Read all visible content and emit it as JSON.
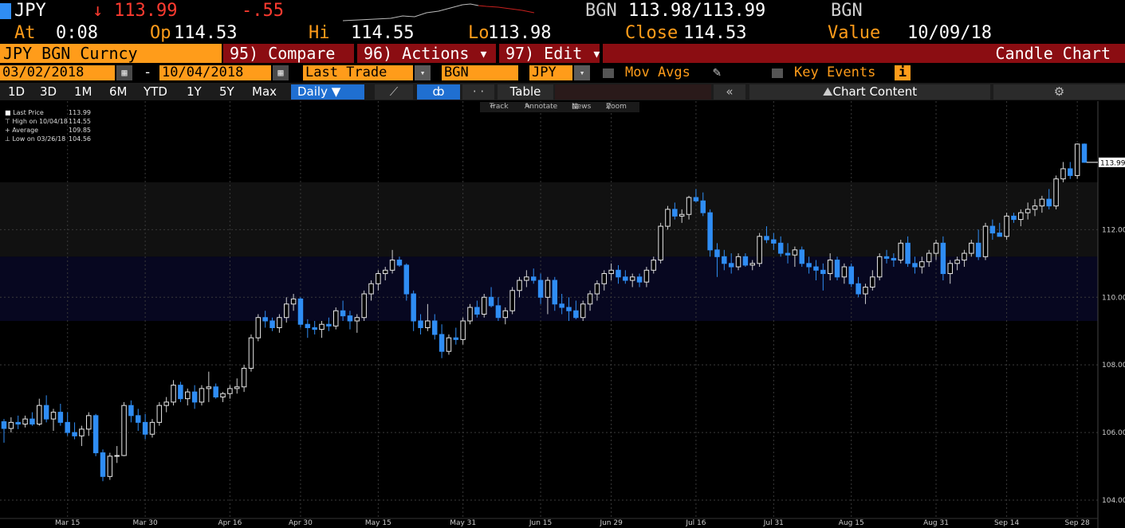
{
  "header": {
    "ticker": "JPY",
    "arrow": "↓",
    "last": "113.99",
    "change": "-.55",
    "bid_src": "BGN",
    "bid_ask": "113.98/113.99",
    "ask_src": "BGN",
    "at_label": "At",
    "at_value": "0:08",
    "op_label": "Op",
    "op_value": "114.53",
    "hi_label": "Hi",
    "hi_value": "114.55",
    "lo_label": "Lo",
    "lo_value": "113.98",
    "close_label": "Close",
    "close_value": "114.53",
    "value_label": "Value",
    "value_date": "10/09/18"
  },
  "menubar": {
    "security": "JPY BGN Curncy",
    "compare": "95) Compare",
    "actions": "96) Actions ▾",
    "edit": "97) Edit ▾",
    "chart_type": "Candle Chart"
  },
  "controls": {
    "start_date": "03/02/2018",
    "dash": "-",
    "end_date": "10/04/2018",
    "field": "Last Trade",
    "source": "BGN",
    "currency": "JPY",
    "mov_avgs": "Mov Avgs",
    "key_events": "Key Events",
    "info_glyph": "i",
    "cal_glyph": "▦",
    "drop_glyph": "▾"
  },
  "toolbar": {
    "periods": [
      "1D",
      "3D",
      "1M",
      "6M",
      "YTD",
      "1Y",
      "5Y",
      "Max"
    ],
    "frequency": "Daily ▼",
    "table": "Table",
    "collapse": "«",
    "chart_content": "Chart Content",
    "settings_glyph": "⚙",
    "line_glyph": "⟋",
    "candle_glyph": "ȸ",
    "dots_glyph": "· ·"
  },
  "mini_toolbar": {
    "track": "Track",
    "annotate": "Annotate",
    "news": "News",
    "zoom": "Zoom"
  },
  "legend": {
    "last_price_label": "Last Price",
    "last_price": "113.99",
    "high_label": "High on 10/04/18",
    "high": "114.55",
    "average_label": "Average",
    "average": "109.85",
    "low_label": "Low on 03/26/18",
    "low": "104.56"
  },
  "colors": {
    "up": "#ffffff",
    "down": "#2f8df4",
    "accent": "#ff9c1a",
    "neg": "#ff3b30",
    "band": "#0a0a22"
  },
  "chart_data": {
    "type": "candlestick",
    "ylim": [
      103.6,
      115.8
    ],
    "y_ticks": [
      104,
      106,
      108,
      110,
      112
    ],
    "last_label": "113.99",
    "x_ticks": [
      "Mar 15",
      "Mar 30",
      "Apr 16",
      "Apr 30",
      "May 15",
      "May 31",
      "Jun 15",
      "Jun 29",
      "Jul 16",
      "Jul 31",
      "Aug 15",
      "Aug 31",
      "Sep 14",
      "Sep 28"
    ],
    "x_tick_index": [
      9,
      20,
      32,
      42,
      53,
      65,
      76,
      86,
      98,
      109,
      120,
      132,
      142,
      152
    ],
    "candles": [
      [
        106.32,
        106.4,
        105.7,
        106.12
      ],
      [
        106.12,
        106.45,
        106.0,
        106.3
      ],
      [
        106.3,
        106.5,
        106.1,
        106.25
      ],
      [
        106.25,
        106.5,
        106.15,
        106.4
      ],
      [
        106.4,
        106.6,
        106.2,
        106.25
      ],
      [
        106.25,
        107.0,
        106.2,
        106.8
      ],
      [
        106.8,
        107.1,
        106.3,
        106.4
      ],
      [
        106.4,
        106.7,
        106.05,
        106.6
      ],
      [
        106.6,
        106.85,
        106.2,
        106.3
      ],
      [
        106.3,
        106.6,
        105.9,
        106.0
      ],
      [
        106.0,
        106.3,
        105.8,
        105.9
      ],
      [
        105.9,
        106.2,
        105.6,
        106.1
      ],
      [
        106.1,
        106.6,
        105.9,
        106.5
      ],
      [
        106.5,
        106.55,
        105.3,
        105.4
      ],
      [
        105.4,
        105.5,
        104.56,
        104.7
      ],
      [
        104.7,
        105.4,
        104.6,
        105.3
      ],
      [
        105.3,
        105.6,
        105.1,
        105.32
      ],
      [
        105.32,
        106.9,
        105.3,
        106.8
      ],
      [
        106.8,
        106.95,
        106.3,
        106.5
      ],
      [
        106.5,
        106.7,
        106.05,
        106.3
      ],
      [
        106.3,
        106.55,
        105.8,
        105.95
      ],
      [
        105.95,
        106.4,
        105.85,
        106.3
      ],
      [
        106.3,
        106.9,
        106.2,
        106.8
      ],
      [
        106.8,
        107.05,
        106.6,
        106.9
      ],
      [
        106.9,
        107.55,
        106.8,
        107.4
      ],
      [
        107.4,
        107.5,
        106.9,
        107.0
      ],
      [
        107.0,
        107.3,
        106.8,
        107.2
      ],
      [
        107.2,
        107.4,
        106.7,
        106.9
      ],
      [
        106.9,
        107.4,
        106.8,
        107.3
      ],
      [
        107.3,
        107.8,
        106.9,
        107.35
      ],
      [
        107.35,
        107.45,
        107.0,
        107.05
      ],
      [
        107.05,
        107.2,
        106.9,
        107.15
      ],
      [
        107.15,
        107.4,
        107.0,
        107.3
      ],
      [
        107.3,
        107.6,
        107.15,
        107.35
      ],
      [
        107.35,
        108.0,
        107.2,
        107.9
      ],
      [
        107.9,
        108.9,
        107.8,
        108.8
      ],
      [
        108.8,
        109.5,
        108.7,
        109.4
      ],
      [
        109.4,
        109.6,
        109.1,
        109.3
      ],
      [
        109.3,
        109.4,
        109.0,
        109.1
      ],
      [
        109.1,
        109.5,
        108.95,
        109.4
      ],
      [
        109.4,
        110.0,
        109.25,
        109.8
      ],
      [
        109.8,
        110.1,
        109.6,
        109.95
      ],
      [
        109.95,
        110.0,
        109.1,
        109.2
      ],
      [
        109.2,
        109.35,
        108.8,
        109.1
      ],
      [
        109.1,
        109.3,
        108.9,
        109.05
      ],
      [
        109.05,
        109.3,
        108.8,
        109.2
      ],
      [
        109.2,
        109.4,
        109.0,
        109.15
      ],
      [
        109.15,
        109.7,
        109.05,
        109.6
      ],
      [
        109.6,
        109.9,
        109.3,
        109.45
      ],
      [
        109.45,
        109.6,
        109.05,
        109.3
      ],
      [
        109.3,
        109.5,
        108.95,
        109.4
      ],
      [
        109.4,
        110.2,
        109.3,
        110.1
      ],
      [
        110.1,
        110.5,
        109.9,
        110.4
      ],
      [
        110.4,
        110.8,
        110.2,
        110.7
      ],
      [
        110.7,
        110.9,
        110.5,
        110.8
      ],
      [
        110.8,
        111.4,
        110.7,
        111.1
      ],
      [
        111.1,
        111.2,
        110.9,
        110.95
      ],
      [
        110.95,
        111.0,
        109.9,
        110.1
      ],
      [
        110.1,
        110.2,
        109.0,
        109.3
      ],
      [
        109.3,
        109.5,
        108.9,
        109.1
      ],
      [
        109.1,
        109.8,
        109.0,
        109.3
      ],
      [
        109.3,
        109.5,
        108.75,
        108.9
      ],
      [
        108.9,
        109.2,
        108.2,
        108.4
      ],
      [
        108.4,
        108.9,
        108.3,
        108.8
      ],
      [
        108.8,
        109.1,
        108.6,
        108.75
      ],
      [
        108.75,
        109.4,
        108.6,
        109.3
      ],
      [
        109.3,
        109.8,
        109.2,
        109.7
      ],
      [
        109.7,
        109.9,
        109.4,
        109.5
      ],
      [
        109.5,
        110.1,
        109.4,
        110.0
      ],
      [
        110.0,
        110.3,
        109.7,
        109.75
      ],
      [
        109.75,
        110.0,
        109.3,
        109.4
      ],
      [
        109.4,
        109.7,
        109.2,
        109.6
      ],
      [
        109.6,
        110.3,
        109.5,
        110.2
      ],
      [
        110.2,
        110.6,
        110.0,
        110.5
      ],
      [
        110.5,
        110.8,
        110.3,
        110.6
      ],
      [
        110.6,
        110.85,
        110.4,
        110.5
      ],
      [
        110.5,
        110.7,
        109.8,
        110.0
      ],
      [
        110.0,
        110.6,
        109.5,
        110.5
      ],
      [
        110.5,
        110.6,
        109.6,
        109.8
      ],
      [
        109.8,
        110.1,
        109.5,
        109.7
      ],
      [
        109.7,
        110.0,
        109.3,
        109.6
      ],
      [
        109.6,
        109.9,
        109.35,
        109.4
      ],
      [
        109.4,
        109.9,
        109.3,
        109.8
      ],
      [
        109.8,
        110.2,
        109.6,
        110.1
      ],
      [
        110.1,
        110.5,
        109.9,
        110.4
      ],
      [
        110.4,
        110.8,
        110.2,
        110.7
      ],
      [
        110.7,
        111.0,
        110.5,
        110.8
      ],
      [
        110.8,
        110.95,
        110.4,
        110.6
      ],
      [
        110.6,
        110.8,
        110.4,
        110.5
      ],
      [
        110.5,
        110.7,
        110.3,
        110.6
      ],
      [
        110.6,
        110.7,
        110.3,
        110.45
      ],
      [
        110.45,
        110.9,
        110.3,
        110.8
      ],
      [
        110.8,
        111.2,
        110.7,
        111.1
      ],
      [
        111.1,
        112.2,
        111.0,
        112.1
      ],
      [
        112.1,
        112.7,
        112.0,
        112.6
      ],
      [
        112.6,
        112.8,
        112.3,
        112.4
      ],
      [
        112.4,
        112.6,
        112.2,
        112.45
      ],
      [
        112.45,
        113.0,
        112.3,
        112.95
      ],
      [
        112.95,
        113.2,
        112.8,
        112.85
      ],
      [
        112.85,
        113.1,
        112.4,
        112.5
      ],
      [
        112.5,
        112.6,
        111.2,
        111.4
      ],
      [
        111.4,
        111.6,
        110.6,
        111.2
      ],
      [
        111.2,
        111.4,
        110.8,
        111.0
      ],
      [
        111.0,
        111.3,
        110.7,
        110.9
      ],
      [
        110.9,
        111.3,
        110.8,
        111.2
      ],
      [
        111.2,
        111.3,
        110.9,
        110.95
      ],
      [
        110.95,
        111.1,
        110.8,
        111.0
      ],
      [
        111.0,
        111.9,
        110.9,
        111.8
      ],
      [
        111.8,
        112.1,
        111.6,
        111.7
      ],
      [
        111.7,
        111.9,
        111.4,
        111.6
      ],
      [
        111.6,
        111.8,
        111.2,
        111.3
      ],
      [
        111.3,
        111.6,
        111.0,
        111.25
      ],
      [
        111.25,
        111.5,
        110.9,
        111.4
      ],
      [
        111.4,
        111.5,
        110.9,
        111.0
      ],
      [
        111.0,
        111.2,
        110.7,
        110.9
      ],
      [
        110.9,
        111.1,
        110.5,
        110.8
      ],
      [
        110.8,
        111.0,
        110.2,
        110.7
      ],
      [
        110.7,
        111.3,
        110.5,
        111.1
      ],
      [
        111.1,
        111.2,
        110.5,
        110.6
      ],
      [
        110.6,
        111.0,
        110.4,
        110.9
      ],
      [
        110.9,
        111.0,
        110.3,
        110.4
      ],
      [
        110.4,
        110.6,
        110.0,
        110.1
      ],
      [
        110.1,
        110.4,
        109.8,
        110.3
      ],
      [
        110.3,
        110.8,
        110.2,
        110.6
      ],
      [
        110.6,
        111.3,
        110.5,
        111.2
      ],
      [
        111.2,
        111.4,
        111.0,
        111.15
      ],
      [
        111.15,
        111.3,
        110.9,
        111.1
      ],
      [
        111.1,
        111.7,
        111.0,
        111.6
      ],
      [
        111.6,
        111.8,
        110.9,
        111.0
      ],
      [
        111.0,
        111.2,
        110.7,
        110.9
      ],
      [
        110.9,
        111.2,
        110.7,
        111.05
      ],
      [
        111.05,
        111.4,
        110.9,
        111.3
      ],
      [
        111.3,
        111.7,
        111.1,
        111.6
      ],
      [
        111.6,
        111.8,
        110.5,
        110.7
      ],
      [
        110.7,
        111.1,
        110.4,
        111.0
      ],
      [
        111.0,
        111.2,
        110.8,
        111.1
      ],
      [
        111.1,
        111.4,
        110.9,
        111.3
      ],
      [
        111.3,
        111.7,
        111.2,
        111.6
      ],
      [
        111.6,
        112.0,
        111.1,
        111.2
      ],
      [
        111.2,
        112.2,
        111.1,
        112.1
      ],
      [
        112.1,
        112.3,
        111.7,
        111.9
      ],
      [
        111.9,
        112.2,
        111.8,
        111.8
      ],
      [
        111.8,
        112.5,
        111.7,
        112.4
      ],
      [
        112.4,
        112.5,
        112.2,
        112.3
      ],
      [
        112.3,
        112.6,
        112.1,
        112.5
      ],
      [
        112.5,
        112.8,
        112.3,
        112.6
      ],
      [
        112.6,
        112.9,
        112.4,
        112.7
      ],
      [
        112.7,
        113.0,
        112.5,
        112.9
      ],
      [
        112.9,
        113.2,
        112.6,
        112.7
      ],
      [
        112.7,
        113.6,
        112.6,
        113.5
      ],
      [
        113.5,
        114.0,
        113.4,
        113.8
      ],
      [
        113.8,
        114.0,
        113.5,
        113.6
      ],
      [
        113.6,
        114.55,
        113.5,
        114.53
      ],
      [
        114.53,
        114.55,
        113.98,
        113.99
      ]
    ]
  }
}
